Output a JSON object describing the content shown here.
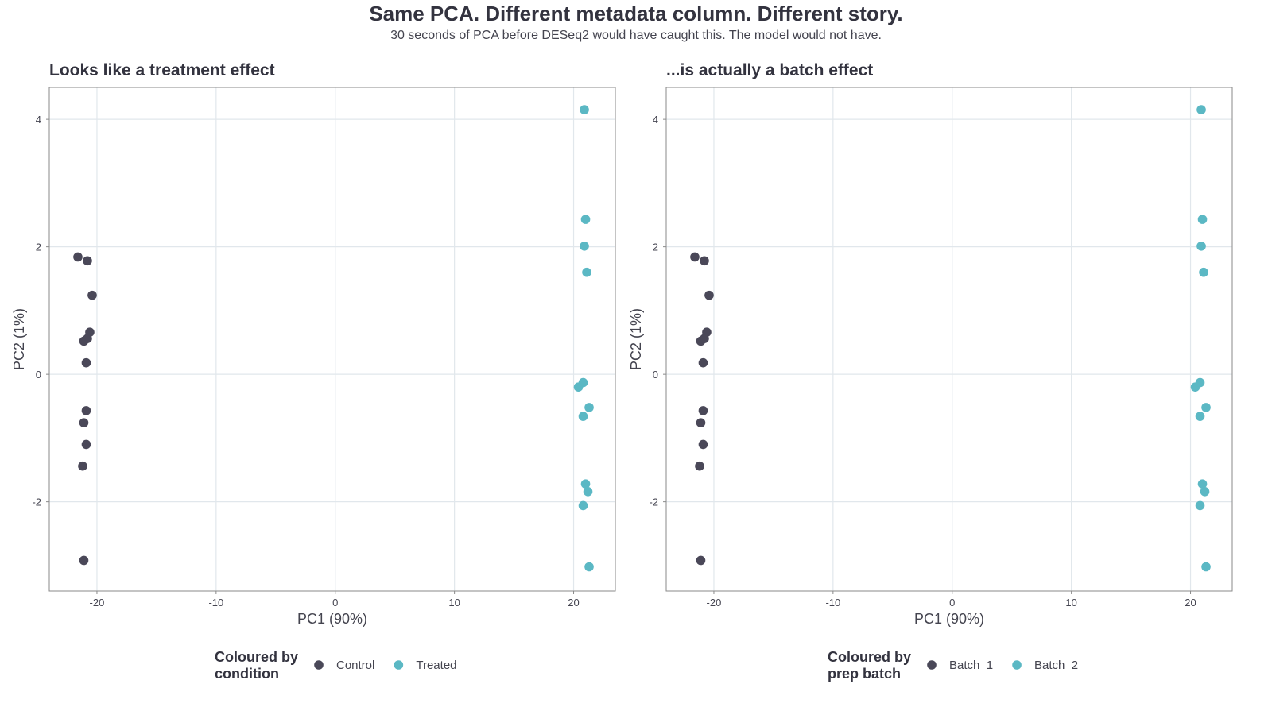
{
  "title": "Same PCA. Different metadata column. Different story.",
  "subtitle": "30 seconds of PCA before DESeq2 would have caught this. The model would not have.",
  "colors": {
    "dark": "#4a4858",
    "teal": "#5bb8c4",
    "grid": "#e1e7ec",
    "border": "#8a8a8a"
  },
  "chart_data": [
    {
      "type": "scatter",
      "title": "Looks like a treatment effect",
      "xlabel": "PC1 (90%)",
      "ylabel": "PC2 (1%)",
      "xlim": [
        -24,
        23.5
      ],
      "ylim": [
        -3.4,
        4.5
      ],
      "xticks": [
        -20,
        -10,
        0,
        10,
        20
      ],
      "yticks": [
        -2,
        0,
        2,
        4
      ],
      "grid": true,
      "legend": {
        "position": "bottom",
        "title_line1": "Coloured by",
        "title_line2": "condition"
      },
      "series": [
        {
          "name": "Control",
          "color": "#4a4858",
          "x": [
            -21.6,
            -20.8,
            -20.4,
            -20.6,
            -20.8,
            -21.1,
            -20.9,
            -20.9,
            -21.1,
            -20.9,
            -21.2,
            -21.1
          ],
          "y": [
            1.84,
            1.78,
            1.24,
            0.66,
            0.56,
            0.52,
            0.18,
            -0.57,
            -0.76,
            -1.1,
            -1.44,
            -2.92
          ]
        },
        {
          "name": "Treated",
          "color": "#5bb8c4",
          "x": [
            20.9,
            21.0,
            20.9,
            21.1,
            20.4,
            20.8,
            21.3,
            20.8,
            21.0,
            21.2,
            20.8,
            21.3
          ],
          "y": [
            4.15,
            2.43,
            2.01,
            1.6,
            -0.2,
            -0.13,
            -0.52,
            -0.66,
            -1.72,
            -1.84,
            -2.06,
            -3.02
          ]
        }
      ]
    },
    {
      "type": "scatter",
      "title": "...is actually a batch effect",
      "xlabel": "PC1 (90%)",
      "ylabel": "PC2 (1%)",
      "xlim": [
        -24,
        23.5
      ],
      "ylim": [
        -3.4,
        4.5
      ],
      "xticks": [
        -20,
        -10,
        0,
        10,
        20
      ],
      "yticks": [
        -2,
        0,
        2,
        4
      ],
      "grid": true,
      "legend": {
        "position": "bottom",
        "title_line1": "Coloured by",
        "title_line2": "prep batch"
      },
      "series": [
        {
          "name": "Batch_1",
          "color": "#4a4858",
          "x": [
            -21.6,
            -20.8,
            -20.4,
            -20.6,
            -20.8,
            -21.1,
            -20.9,
            -20.9,
            -21.1,
            -20.9,
            -21.2,
            -21.1
          ],
          "y": [
            1.84,
            1.78,
            1.24,
            0.66,
            0.56,
            0.52,
            0.18,
            -0.57,
            -0.76,
            -1.1,
            -1.44,
            -2.92
          ]
        },
        {
          "name": "Batch_2",
          "color": "#5bb8c4",
          "x": [
            20.9,
            21.0,
            20.9,
            21.1,
            20.4,
            20.8,
            21.3,
            20.8,
            21.0,
            21.2,
            20.8,
            21.3
          ],
          "y": [
            4.15,
            2.43,
            2.01,
            1.6,
            -0.2,
            -0.13,
            -0.52,
            -0.66,
            -1.72,
            -1.84,
            -2.06,
            -3.02
          ]
        }
      ]
    }
  ]
}
